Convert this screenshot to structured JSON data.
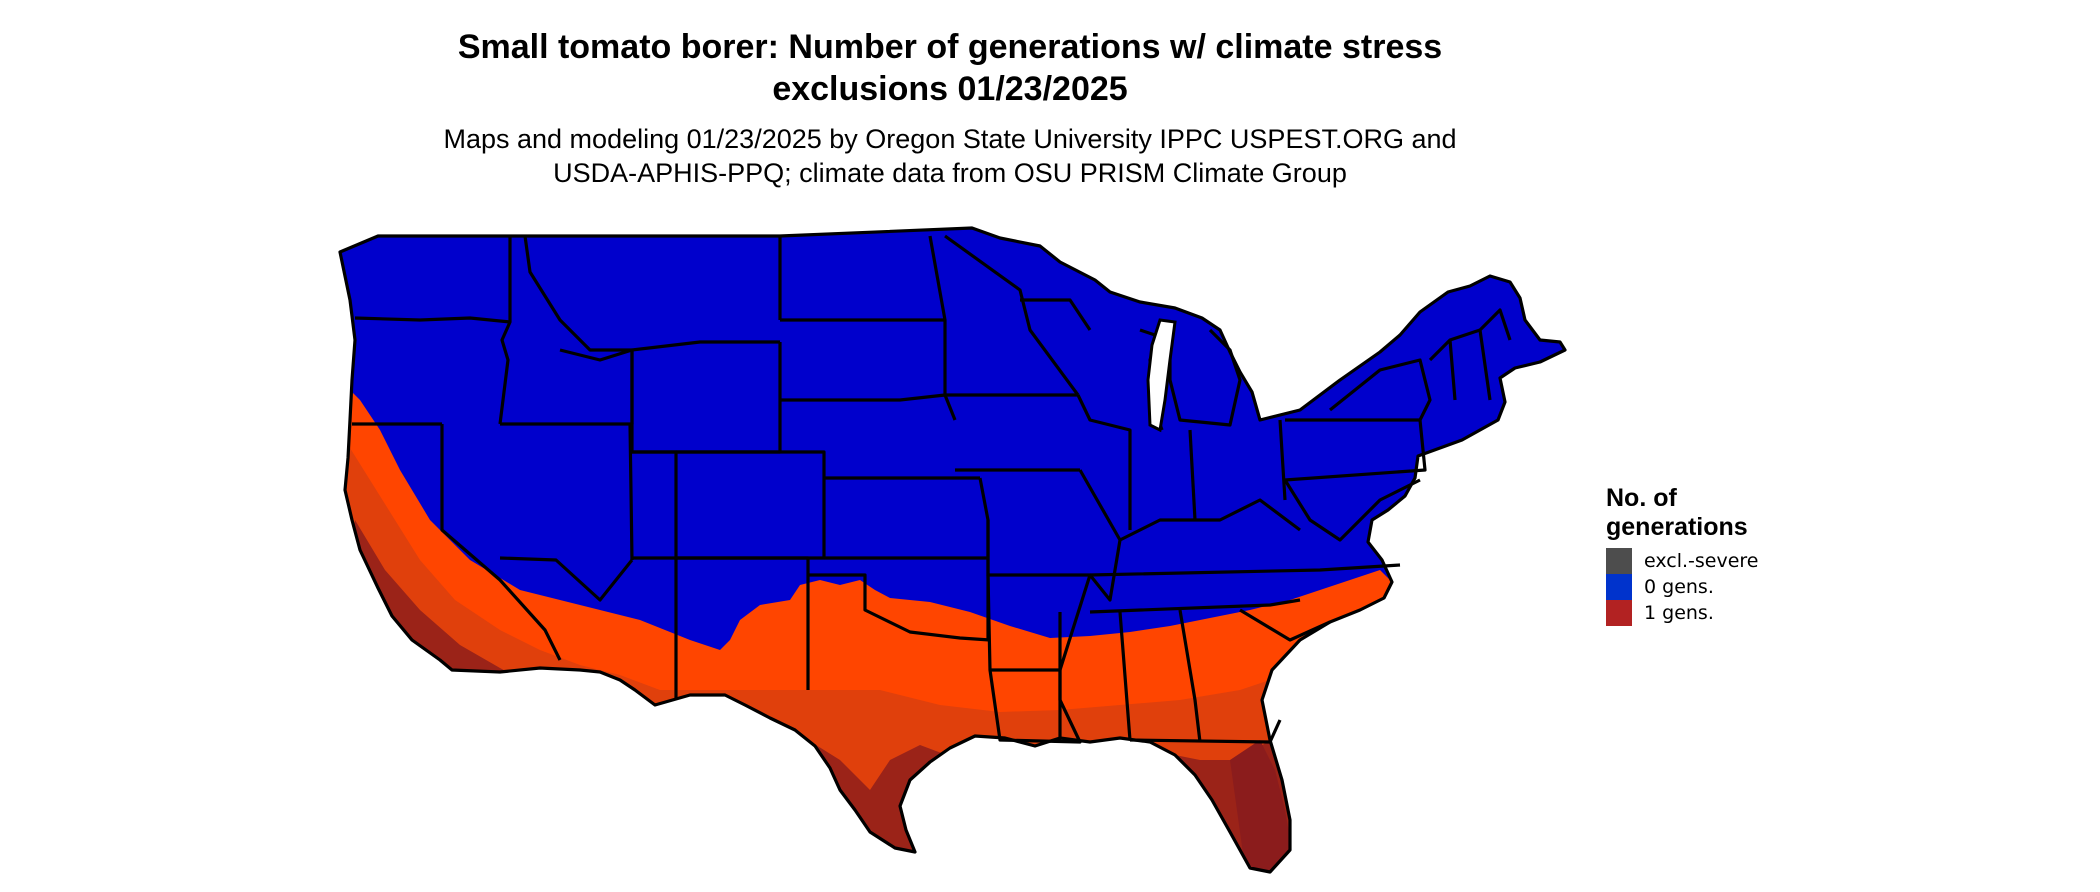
{
  "title_line1": "Small tomato borer: Number of generations w/ climate stress",
  "title_line2": "exclusions 01/23/2025",
  "subtitle_line1": "Maps and modeling 01/23/2025 by Oregon State University IPPC USPEST.ORG and",
  "subtitle_line2": "USDA-APHIS-PPQ; climate data from OSU PRISM Climate Group",
  "legend": {
    "title_line1": "No. of",
    "title_line2": "generations",
    "items": [
      {
        "label": "excl.-severe",
        "color": "#4d4d4d"
      },
      {
        "label": "0 gens.",
        "color": "#0033cc"
      },
      {
        "label": "1 gens.",
        "color": "#b22222"
      }
    ]
  },
  "colors": {
    "zero_gens_fill": "#0000cc",
    "one_gen_light": "#ff4500",
    "one_gen_mid": "#e0400c",
    "one_gen_dark": "#9b2318",
    "border": "#000000"
  }
}
